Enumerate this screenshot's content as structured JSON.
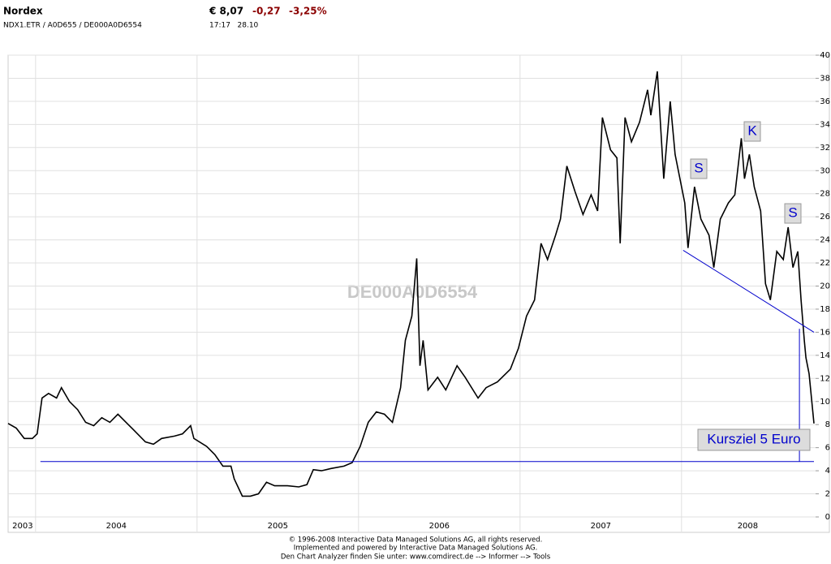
{
  "header": {
    "name": "Nordex",
    "price": "€ 8,07",
    "change": "-0,27",
    "change_pct": "-3,25%",
    "ids": "NDX1.ETR / A0D655 / DE000A0D6554",
    "time": "17:17   28.10"
  },
  "chart_data": {
    "type": "line",
    "watermark": "DE000A0D6554",
    "color": "#000000",
    "grid": true,
    "x": [
      2003.83,
      2003.88,
      2003.93,
      2003.98,
      2004.01,
      2004.04,
      2004.08,
      2004.13,
      2004.16,
      2004.21,
      2004.26,
      2004.31,
      2004.36,
      2004.41,
      2004.46,
      2004.51,
      2004.56,
      2004.61,
      2004.68,
      2004.73,
      2004.78,
      2004.86,
      2004.91,
      2004.96,
      2004.98,
      2005.06,
      2005.11,
      2005.16,
      2005.21,
      2005.23,
      2005.28,
      2005.33,
      2005.38,
      2005.43,
      2005.48,
      2005.56,
      2005.63,
      2005.68,
      2005.72,
      2005.77,
      2005.83,
      2005.91,
      2005.96,
      2006.01,
      2006.06,
      2006.11,
      2006.16,
      2006.21,
      2006.26,
      2006.29,
      2006.33,
      2006.36,
      2006.38,
      2006.4,
      2006.43,
      2006.49,
      2006.54,
      2006.61,
      2006.66,
      2006.74,
      2006.79,
      2006.86,
      2006.94,
      2006.99,
      2007.04,
      2007.09,
      2007.13,
      2007.17,
      2007.22,
      2007.25,
      2007.29,
      2007.34,
      2007.39,
      2007.44,
      2007.48,
      2007.51,
      2007.56,
      2007.6,
      2007.62,
      2007.65,
      2007.69,
      2007.74,
      2007.79,
      2007.81,
      2007.85,
      2007.89,
      2007.93,
      2007.96,
      2008.02,
      2008.04,
      2008.08,
      2008.12,
      2008.17,
      2008.2,
      2008.24,
      2008.29,
      2008.33,
      2008.37,
      2008.39,
      2008.42,
      2008.45,
      2008.49,
      2008.52,
      2008.55,
      2008.59,
      2008.63,
      2008.66,
      2008.69,
      2008.72,
      2008.74,
      2008.76,
      2008.77,
      2008.79,
      2008.82
    ],
    "values": [
      8.1,
      7.7,
      6.8,
      6.8,
      7.2,
      10.3,
      10.7,
      10.3,
      11.2,
      10.0,
      9.3,
      8.2,
      7.9,
      8.6,
      8.2,
      8.9,
      8.2,
      7.5,
      6.5,
      6.3,
      6.8,
      7.0,
      7.2,
      7.9,
      6.8,
      6.1,
      5.4,
      4.4,
      4.4,
      3.3,
      1.8,
      1.8,
      2.0,
      3.0,
      2.7,
      2.7,
      2.6,
      2.8,
      4.1,
      4.0,
      4.2,
      4.4,
      4.7,
      6.1,
      8.2,
      9.1,
      8.9,
      8.2,
      11.2,
      15.3,
      17.4,
      22.4,
      13.1,
      15.3,
      11.0,
      12.1,
      11.0,
      13.1,
      12.1,
      10.3,
      11.2,
      11.7,
      12.8,
      14.6,
      17.4,
      18.8,
      23.7,
      22.3,
      24.4,
      25.8,
      30.4,
      28.2,
      26.2,
      27.9,
      26.5,
      34.6,
      31.8,
      31.1,
      23.7,
      34.6,
      32.5,
      34.2,
      37.0,
      34.8,
      38.6,
      29.3,
      36.0,
      31.4,
      27.2,
      23.3,
      28.6,
      25.8,
      24.4,
      21.6,
      25.8,
      27.2,
      27.9,
      32.8,
      29.3,
      31.4,
      28.6,
      26.5,
      20.2,
      18.8,
      23.0,
      22.3,
      25.1,
      21.6,
      23.0,
      18.8,
      15.3,
      13.8,
      12.4,
      8.1
    ],
    "xlim": [
      2003.83,
      2008.83
    ],
    "ylim": [
      0,
      40
    ],
    "yticks": [
      0,
      2,
      4,
      6,
      8,
      10,
      12,
      14,
      16,
      18,
      20,
      22,
      24,
      26,
      28,
      30,
      32,
      34,
      36,
      38,
      40
    ],
    "xgrid": [
      2004,
      2005,
      2006,
      2007,
      2008
    ],
    "xticks": [
      {
        "value": 2003.92,
        "label": "2003"
      },
      {
        "value": 2004.5,
        "label": "2004"
      },
      {
        "value": 2005.5,
        "label": "2005"
      },
      {
        "value": 2006.5,
        "label": "2006"
      },
      {
        "value": 2007.5,
        "label": "2007"
      },
      {
        "value": 2008.41,
        "label": "2008"
      }
    ],
    "lines": [
      {
        "x": [
          2004.03,
          2008.82
        ],
        "y": [
          4.8,
          4.8
        ]
      },
      {
        "x": [
          2008.01,
          2008.82
        ],
        "y": [
          23.1,
          16.0
        ]
      },
      {
        "x": [
          2008.73,
          2008.73
        ],
        "y": [
          16.3,
          4.8
        ]
      }
    ],
    "annotations": [
      "S",
      "K",
      "S",
      "Kursziel 5 Euro"
    ]
  },
  "footer": [
    "© 1996-2008 Interactive Data Managed Solutions AG, all rights reserved.",
    "Implemented and powered by Interactive Data Managed Solutions AG.",
    "Den Chart Analyzer finden Sie unter: www.comdirect.de --> Informer --> Tools"
  ]
}
